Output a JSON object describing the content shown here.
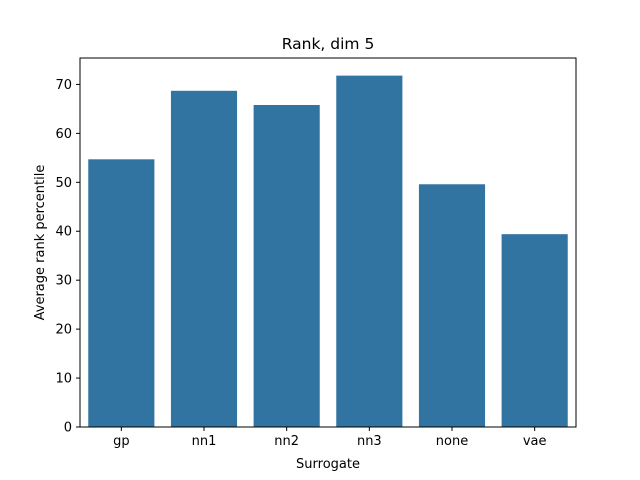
{
  "chart_data": {
    "type": "bar",
    "title": "Rank, dim 5",
    "xlabel": "Surrogate",
    "ylabel": "Average rank percentile",
    "categories": [
      "gp",
      "nn1",
      "nn2",
      "nn3",
      "none",
      "vae"
    ],
    "values": [
      54.7,
      68.7,
      65.8,
      71.8,
      49.6,
      39.4
    ],
    "ylim": [
      0,
      75.4
    ],
    "yticks": [
      0,
      10,
      20,
      30,
      40,
      50,
      60,
      70
    ],
    "grid": false,
    "bar_color": "#3274a1"
  }
}
